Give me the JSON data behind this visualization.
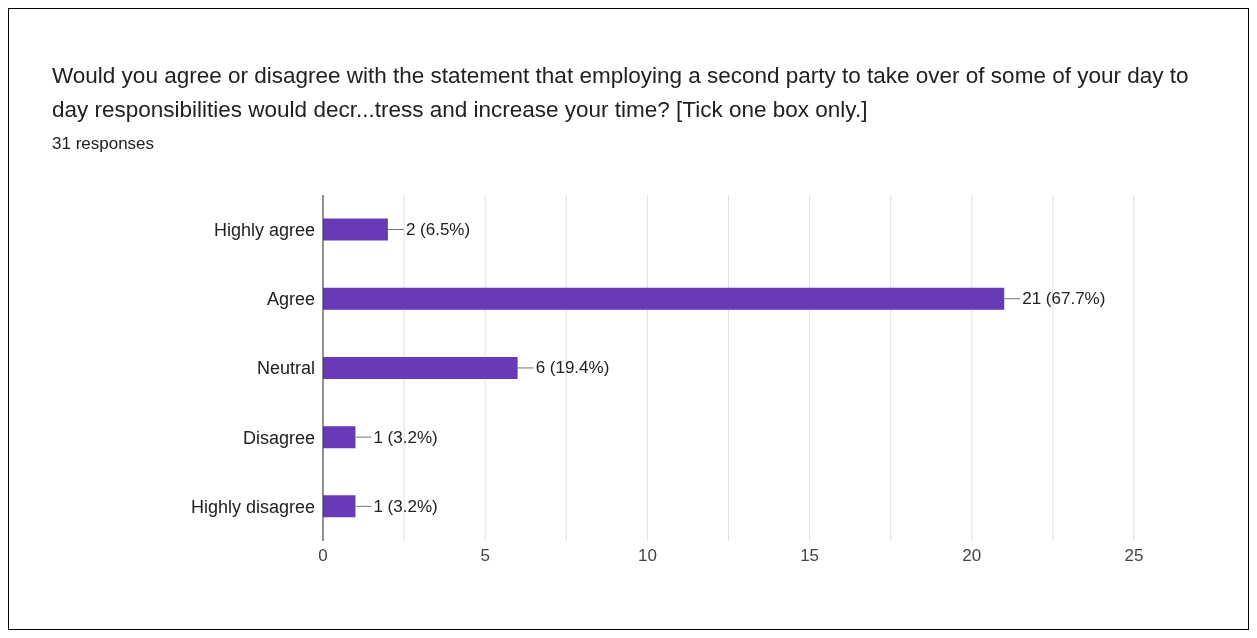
{
  "chart_data": {
    "type": "bar",
    "orientation": "horizontal",
    "title": "Would you agree or disagree with the statement that employing a second party to take over of some of your day to day responsibilities would decr...tress and increase your time? [Tick one box only.]",
    "subtitle": "31 responses",
    "categories": [
      "Highly agree",
      "Agree",
      "Neutral",
      "Disagree",
      "Highly disagree"
    ],
    "values": [
      2,
      21,
      6,
      1,
      1
    ],
    "value_labels": [
      "2 (6.5%)",
      "21 (67.7%)",
      "6 (19.4%)",
      "1 (3.2%)",
      "1 (3.2%)"
    ],
    "color": "#673ab7",
    "xlim": [
      0,
      25
    ],
    "xticks": [
      0,
      {
        "value": 2.5,
        "label": null
      },
      5,
      {
        "value": 7.5,
        "label": null
      },
      10,
      {
        "value": 12.5,
        "label": null
      },
      15,
      {
        "value": 17.5,
        "label": null
      },
      20,
      {
        "value": 22.5,
        "label": null
      },
      25
    ],
    "grid": "x"
  }
}
